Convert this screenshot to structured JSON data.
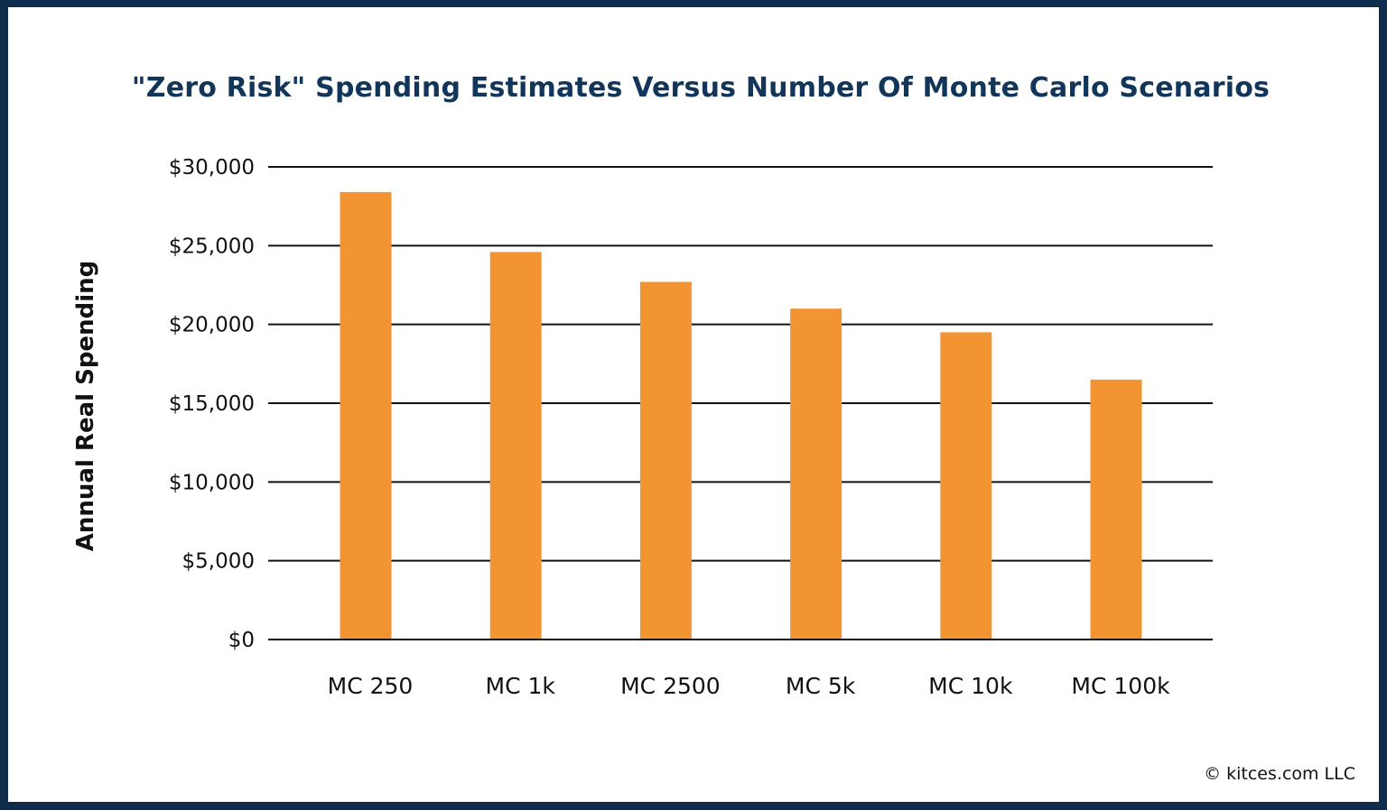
{
  "chart_data": {
    "type": "bar",
    "title": "\"Zero Risk\" Spending Estimates Versus Number Of Monte Carlo Scenarios",
    "xlabel": "",
    "ylabel": "Annual Real Spending",
    "categories": [
      "MC 250",
      "MC 1k",
      "MC 2500",
      "MC 5k",
      "MC 10k",
      "MC 100k"
    ],
    "values": [
      28400,
      24600,
      22700,
      21000,
      19500,
      16500
    ],
    "ylim": [
      0,
      30000
    ],
    "yticks": [
      0,
      5000,
      10000,
      15000,
      20000,
      25000,
      30000
    ],
    "ytick_labels": [
      "$0",
      "$5,000",
      "$10,000",
      "$15,000",
      "$20,000",
      "$25,000",
      "$30,000"
    ],
    "grid": true,
    "legend": "none",
    "bar_color": "#f39433"
  },
  "credit": "© kitces.com LLC",
  "colors": {
    "frame": "#0f2c4c",
    "title": "#12355a"
  }
}
